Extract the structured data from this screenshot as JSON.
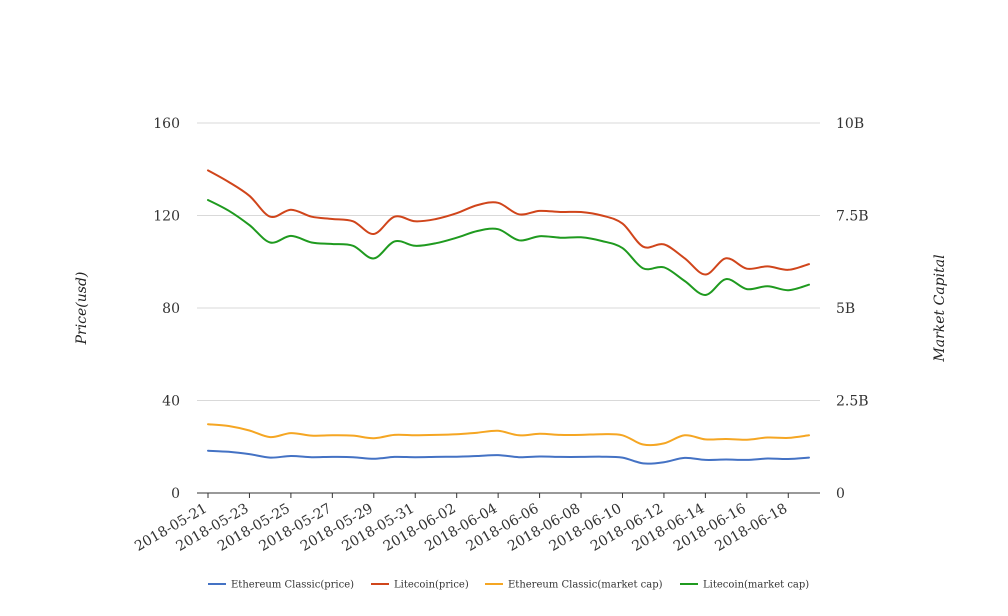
{
  "chart_data": {
    "type": "line",
    "x": [
      "2018-05-21",
      "2018-05-22",
      "2018-05-23",
      "2018-05-24",
      "2018-05-25",
      "2018-05-26",
      "2018-05-27",
      "2018-05-28",
      "2018-05-29",
      "2018-05-30",
      "2018-05-31",
      "2018-06-01",
      "2018-06-02",
      "2018-06-03",
      "2018-06-04",
      "2018-06-05",
      "2018-06-06",
      "2018-06-07",
      "2018-06-08",
      "2018-06-09",
      "2018-06-10",
      "2018-06-11",
      "2018-06-12",
      "2018-06-13",
      "2018-06-14",
      "2018-06-15",
      "2018-06-16",
      "2018-06-17",
      "2018-06-18",
      "2018-06-19"
    ],
    "x_ticks": [
      "2018-05-21",
      "2018-05-23",
      "2018-05-25",
      "2018-05-27",
      "2018-05-29",
      "2018-05-31",
      "2018-06-02",
      "2018-06-04",
      "2018-06-06",
      "2018-06-08",
      "2018-06-10",
      "2018-06-12",
      "2018-06-14",
      "2018-06-16",
      "2018-06-18"
    ],
    "ylabel": "Price(usd)",
    "y2label": "Market Capital",
    "ylim": [
      0,
      160
    ],
    "y2lim": [
      0,
      10000000000
    ],
    "y_ticks": [
      "0",
      "40",
      "80",
      "120",
      "160"
    ],
    "y2_ticks": [
      "0",
      "2.5B",
      "5B",
      "7.5B",
      "10B"
    ],
    "grid": true,
    "legend_position": "bottom",
    "series": [
      {
        "name": "Ethereum Classic(price)",
        "axis": "left",
        "color": "#4472c4",
        "values": [
          18.3,
          17.8,
          16.8,
          15.3,
          16.0,
          15.5,
          15.6,
          15.5,
          14.8,
          15.6,
          15.5,
          15.6,
          15.7,
          16.0,
          16.4,
          15.5,
          15.8,
          15.6,
          15.6,
          15.7,
          15.3,
          12.8,
          13.3,
          15.2,
          14.3,
          14.5,
          14.3,
          14.9,
          14.7,
          15.3
        ]
      },
      {
        "name": "Litecoin(price)",
        "axis": "left",
        "color": "#d0451b",
        "values": [
          139.5,
          134.5,
          128.5,
          119.5,
          122.5,
          119.5,
          118.5,
          117.5,
          112.0,
          119.5,
          117.5,
          118.5,
          121.0,
          124.5,
          125.5,
          120.5,
          122.0,
          121.5,
          121.5,
          120.0,
          116.5,
          106.5,
          107.5,
          101.5,
          94.5,
          101.5,
          97.0,
          98.0,
          96.5,
          99.0
        ]
      },
      {
        "name": "Ethereum Classic(market cap)",
        "axis": "right",
        "color": "#f5a623",
        "values": [
          1860000000,
          1810000000,
          1690000000,
          1510000000,
          1620000000,
          1550000000,
          1560000000,
          1550000000,
          1480000000,
          1570000000,
          1560000000,
          1570000000,
          1590000000,
          1630000000,
          1680000000,
          1560000000,
          1600000000,
          1570000000,
          1570000000,
          1590000000,
          1560000000,
          1310000000,
          1340000000,
          1560000000,
          1450000000,
          1460000000,
          1440000000,
          1500000000,
          1490000000,
          1560000000
        ]
      },
      {
        "name": "Litecoin(market cap)",
        "axis": "right",
        "color": "#1f9a1f",
        "values": [
          7920000000,
          7630000000,
          7240000000,
          6770000000,
          6950000000,
          6770000000,
          6730000000,
          6680000000,
          6340000000,
          6800000000,
          6680000000,
          6750000000,
          6900000000,
          7080000000,
          7130000000,
          6830000000,
          6940000000,
          6900000000,
          6910000000,
          6810000000,
          6620000000,
          6070000000,
          6100000000,
          5730000000,
          5350000000,
          5780000000,
          5510000000,
          5590000000,
          5480000000,
          5630000000
        ]
      }
    ]
  }
}
